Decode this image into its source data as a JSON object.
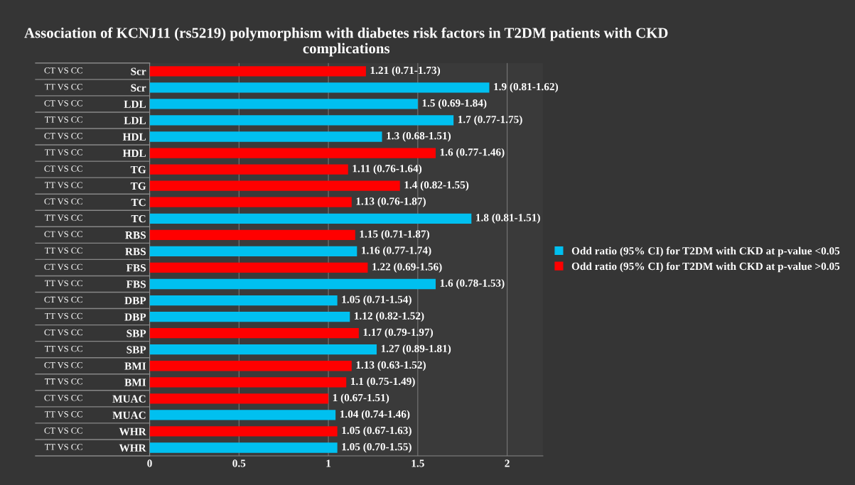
{
  "chart_data": {
    "type": "bar",
    "orientation": "horizontal",
    "title": "Association of KCNJ11 (rs5219) polymorphism with diabetes risk factors in T2DM patients with CKD complications",
    "categories": [
      "Scr",
      "Scr",
      "LDL",
      "LDL",
      "HDL",
      "HDL",
      "TG",
      "TG",
      "TC",
      "TC",
      "RBS",
      "RBS",
      "FBS",
      "FBS",
      "DBP",
      "DBP",
      "SBP",
      "SBP",
      "BMI",
      "BMI",
      "MUAC",
      "MUAC",
      "WHR",
      "WHR"
    ],
    "annotations": [
      "CT VS CC",
      "TT VS CC",
      "CT VS CC",
      "TT VS CC",
      "CT VS CC",
      "TT VS CC",
      "CT VS CC",
      "TT VS CC",
      "CT VS CC",
      "TT VS CC",
      "CT VS CC",
      "TT VS CC",
      "CT VS CC",
      "TT VS CC",
      "CT VS CC",
      "TT VS CC",
      "CT VS CC",
      "TT VS CC",
      "CT VS CC",
      "TT VS CC",
      "CT VS CC",
      "TT VS CC",
      "CT VS CC",
      "TT VS CC"
    ],
    "series": [
      {
        "name": "Odd ratio (95% CI) for T2DM with CKD at p-value <0.05",
        "color": "#00c0f0",
        "values": [
          null,
          1.9,
          1.5,
          1.7,
          1.3,
          null,
          null,
          null,
          null,
          1.8,
          null,
          1.16,
          null,
          1.6,
          1.05,
          1.12,
          null,
          1.27,
          null,
          null,
          null,
          1.04,
          null,
          1.05
        ],
        "value_labels": [
          null,
          "1.9 (0.81-1.62)",
          "1.5 (0.69-1.84)",
          "1.7 (0.77-1.75)",
          "1.3 (0.68-1.51)",
          null,
          null,
          null,
          null,
          "1.8 (0.81-1.51)",
          null,
          "1.16 (0.77-1.74)",
          null,
          "1.6 (0.78-1.53)",
          "1.05 (0.71-1.54)",
          "1.12 (0.82-1.52)",
          null,
          "1.27 (0.89-1.81)",
          null,
          null,
          null,
          "1.04 (0.74-1.46)",
          null,
          "1.05 (0.70-1.55)"
        ]
      },
      {
        "name": "Odd ratio (95% CI) for T2DM with CKD at p-value >0.05",
        "color": "#ff0000",
        "values": [
          1.21,
          null,
          null,
          null,
          null,
          1.6,
          1.11,
          1.4,
          1.13,
          null,
          1.15,
          null,
          1.22,
          null,
          null,
          null,
          1.17,
          null,
          1.13,
          1.1,
          1,
          null,
          1.05,
          null
        ],
        "value_labels": [
          "1.21 (0.71-1.73)",
          null,
          null,
          null,
          null,
          "1.6 (0.77-1.46)",
          "1.11 (0.76-1.64)",
          "1.4 (0.82-1.55)",
          "1.13 (0.76-1.87)",
          null,
          "1.15 (0.71-1.87)",
          null,
          "1.22 (0.69-1.56)",
          null,
          null,
          null,
          "1.17 (0.79-1.97)",
          null,
          "1.13 (0.63-1.52)",
          "1.1 (0.75-1.49)",
          "1 (0.67-1.51)",
          null,
          "1.05 (0.67-1.63)",
          null
        ]
      }
    ],
    "xlim": [
      0,
      2.2
    ],
    "xticks": [
      0,
      0.5,
      1,
      1.5,
      2
    ],
    "grid": "x",
    "legend": "right"
  }
}
